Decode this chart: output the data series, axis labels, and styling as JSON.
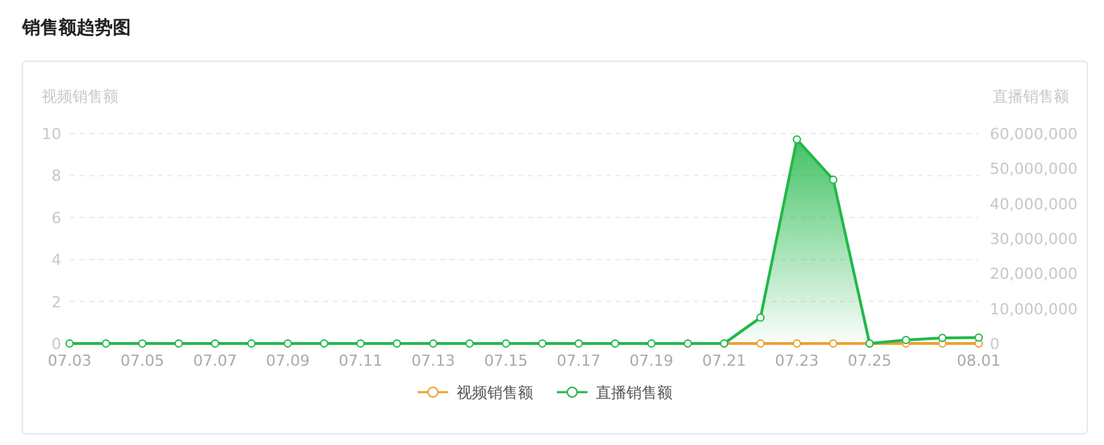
{
  "chart_data": {
    "type": "line",
    "title": "销售额趋势图",
    "ylabel": "视频销售额",
    "y2label": "直播销售额",
    "categories": [
      "07.03",
      null,
      "07.05",
      null,
      "07.07",
      null,
      "07.09",
      null,
      "07.11",
      null,
      "07.13",
      null,
      "07.15",
      null,
      "07.17",
      null,
      "07.19",
      null,
      "07.21",
      null,
      "07.23",
      null,
      "07.25",
      null,
      null,
      "08.01"
    ],
    "series": [
      {
        "name": "视频销售额",
        "color": "#f0a030",
        "type": "line",
        "values": [
          null,
          null,
          null,
          null,
          null,
          null,
          null,
          null,
          null,
          null,
          null,
          null,
          null,
          null,
          null,
          null,
          null,
          null,
          0,
          0,
          0,
          0,
          0,
          0,
          0,
          0
        ]
      },
      {
        "name": "直播销售额",
        "color": "#22b84a",
        "type": "area",
        "axis": "y2",
        "values": [
          0,
          0,
          0,
          0,
          0,
          0,
          0,
          0,
          0,
          0,
          0,
          0,
          0,
          0,
          0,
          0,
          0,
          0,
          0,
          7400000,
          58300000,
          46800000,
          0,
          1000000,
          1600000,
          1700000
        ]
      }
    ],
    "ylim": [
      0,
      10
    ],
    "yticks": [
      0,
      2,
      4,
      6,
      8,
      10
    ],
    "y2lim": [
      0,
      60000000
    ],
    "y2ticks": [
      {
        "value": 0,
        "label": "0"
      },
      {
        "value": 10000000,
        "label": "10,000,000"
      },
      {
        "value": 20000000,
        "label": "20,000,000"
      },
      {
        "value": 30000000,
        "label": "30,000,000"
      },
      {
        "value": 40000000,
        "label": "40,000,000"
      },
      {
        "value": 50000000,
        "label": "50,000,000"
      },
      {
        "value": 60000000,
        "label": "60,000,000"
      }
    ],
    "grid": "y",
    "legend": "bottom",
    "marker": "circle"
  }
}
